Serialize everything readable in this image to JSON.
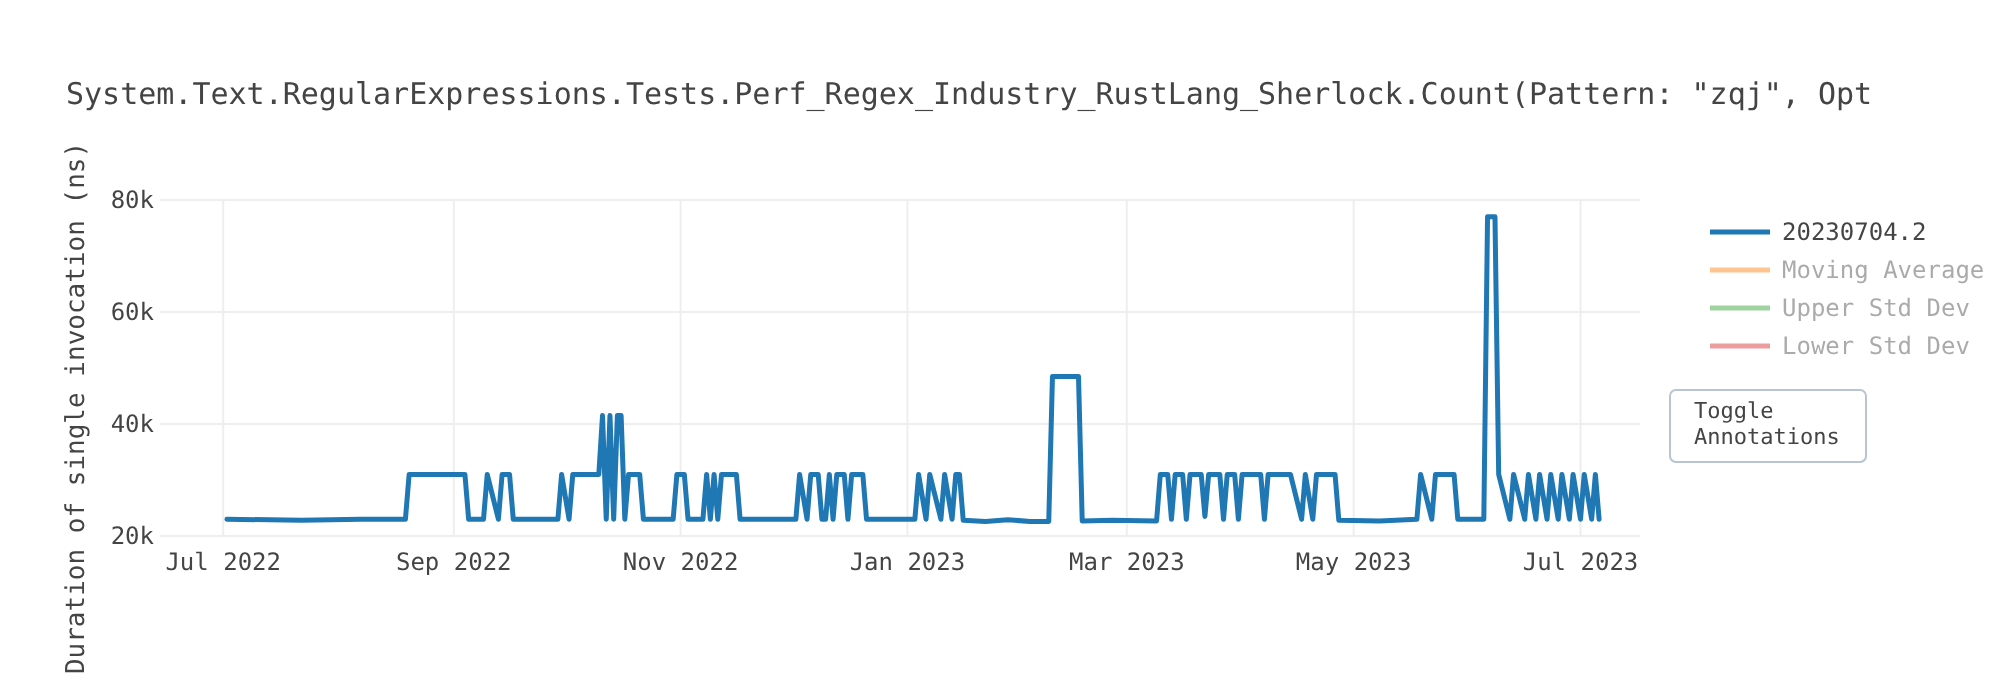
{
  "chart_data": {
    "type": "line",
    "title": "System.Text.RegularExpressions.Tests.Perf_Regex_Industry_RustLang_Sherlock.Count(Pattern: \"zqj\", Opt",
    "ylabel": "Duration of single invocation (ns)",
    "xlim": [
      "2022-06-14",
      "2023-07-17"
    ],
    "ylim": [
      20000,
      80000
    ],
    "xticks": [
      {
        "value": "2022-07-01",
        "label": "Jul 2022"
      },
      {
        "value": "2022-09-01",
        "label": "Sep 2022"
      },
      {
        "value": "2022-11-01",
        "label": "Nov 2022"
      },
      {
        "value": "2023-01-01",
        "label": "Jan 2023"
      },
      {
        "value": "2023-03-01",
        "label": "Mar 2023"
      },
      {
        "value": "2023-05-01",
        "label": "May 2023"
      },
      {
        "value": "2023-07-01",
        "label": "Jul 2023"
      }
    ],
    "yticks": [
      {
        "value": 20000,
        "label": "20k"
      },
      {
        "value": 40000,
        "label": "40k"
      },
      {
        "value": 60000,
        "label": "60k"
      },
      {
        "value": 80000,
        "label": "80k"
      }
    ],
    "grid": true,
    "legend": "top right",
    "marker": "none",
    "line_style": "solid",
    "annotations": [
      "Toggle Annotations"
    ],
    "series": [
      {
        "name": "20230704.2",
        "color": "#1f77b4",
        "x": [
          "2022-07-02",
          "2022-07-22",
          "2022-08-07",
          "2022-08-19",
          "2022-08-20",
          "2022-09-04",
          "2022-09-05",
          "2022-09-09",
          "2022-09-10",
          "2022-09-13",
          "2022-09-14",
          "2022-09-16",
          "2022-09-17",
          "2022-09-29",
          "2022-09-30",
          "2022-10-02",
          "2022-10-03",
          "2022-10-10",
          "2022-10-11",
          "2022-10-12",
          "2022-10-13",
          "2022-10-14",
          "2022-10-15",
          "2022-10-16",
          "2022-10-17",
          "2022-10-18",
          "2022-10-21",
          "2022-10-22",
          "2022-10-30",
          "2022-10-31",
          "2022-11-02",
          "2022-11-03",
          "2022-11-07",
          "2022-11-08",
          "2022-11-09",
          "2022-11-10",
          "2022-11-11",
          "2022-11-12",
          "2022-11-16",
          "2022-11-17",
          "2022-12-02",
          "2022-12-03",
          "2022-12-05",
          "2022-12-06",
          "2022-12-08",
          "2022-12-09",
          "2022-12-10",
          "2022-12-11",
          "2022-12-12",
          "2022-12-13",
          "2022-12-15",
          "2022-12-16",
          "2022-12-17",
          "2022-12-20",
          "2022-12-21",
          "2023-01-03",
          "2023-01-04",
          "2023-01-06",
          "2023-01-07",
          "2023-01-10",
          "2023-01-11",
          "2023-01-13",
          "2023-01-14",
          "2023-01-15",
          "2023-01-16",
          "2023-01-22",
          "2023-01-28",
          "2023-02-03",
          "2023-02-08",
          "2023-02-09",
          "2023-02-16",
          "2023-02-17",
          "2023-02-25",
          "2023-03-09",
          "2023-03-10",
          "2023-03-12",
          "2023-03-13",
          "2023-03-14",
          "2023-03-16",
          "2023-03-17",
          "2023-03-18",
          "2023-03-21",
          "2023-03-22",
          "2023-03-23",
          "2023-03-26",
          "2023-03-27",
          "2023-03-28",
          "2023-03-30",
          "2023-03-31",
          "2023-04-01",
          "2023-04-06",
          "2023-04-07",
          "2023-04-08",
          "2023-04-14",
          "2023-04-17",
          "2023-04-18",
          "2023-04-20",
          "2023-04-21",
          "2023-04-26",
          "2023-04-27",
          "2023-05-08",
          "2023-05-18",
          "2023-05-19",
          "2023-05-22",
          "2023-05-23",
          "2023-05-28",
          "2023-05-29",
          "2023-06-05",
          "2023-06-06",
          "2023-06-08",
          "2023-06-09",
          "2023-06-12",
          "2023-06-13",
          "2023-06-16",
          "2023-06-17",
          "2023-06-19",
          "2023-06-20",
          "2023-06-22",
          "2023-06-23",
          "2023-06-25",
          "2023-06-26",
          "2023-06-28",
          "2023-06-29",
          "2023-07-01",
          "2023-07-02",
          "2023-07-04",
          "2023-07-05",
          "2023-07-06"
        ],
        "values": [
          23000,
          22800,
          23000,
          23000,
          31000,
          31000,
          23000,
          23000,
          31000,
          23000,
          31000,
          31000,
          23000,
          23000,
          31000,
          23000,
          31000,
          31000,
          41500,
          23000,
          41500,
          23000,
          41500,
          41500,
          23000,
          31000,
          31000,
          23000,
          23000,
          31000,
          31000,
          23000,
          23000,
          31000,
          23000,
          31000,
          23000,
          31000,
          31000,
          23000,
          23000,
          31000,
          23000,
          31000,
          31000,
          23000,
          23000,
          31000,
          23000,
          31000,
          31000,
          23000,
          31000,
          31000,
          23000,
          23000,
          31000,
          23000,
          31000,
          23000,
          31000,
          23000,
          31000,
          31000,
          22800,
          22600,
          22900,
          22600,
          22600,
          48500,
          48500,
          22700,
          22800,
          22700,
          31000,
          31000,
          23000,
          31000,
          31000,
          23000,
          31000,
          31000,
          23500,
          31000,
          31000,
          23000,
          31000,
          31000,
          23000,
          31000,
          31000,
          23000,
          31000,
          31000,
          23000,
          31000,
          23000,
          31000,
          31000,
          22800,
          22700,
          23000,
          31000,
          23000,
          31000,
          31000,
          23000,
          23000,
          77000,
          77000,
          31000,
          23000,
          31000,
          23000,
          31000,
          23000,
          31000,
          23000,
          31000,
          23000,
          31000,
          23000,
          31000,
          23000,
          31000,
          23000,
          31000,
          23000
        ]
      },
      {
        "name": "Moving Average",
        "color": "#ff7f0e"
      },
      {
        "name": "Upper Std Dev",
        "color": "#2ca02c"
      },
      {
        "name": "Lower Std Dev",
        "color": "#d62728"
      }
    ]
  }
}
